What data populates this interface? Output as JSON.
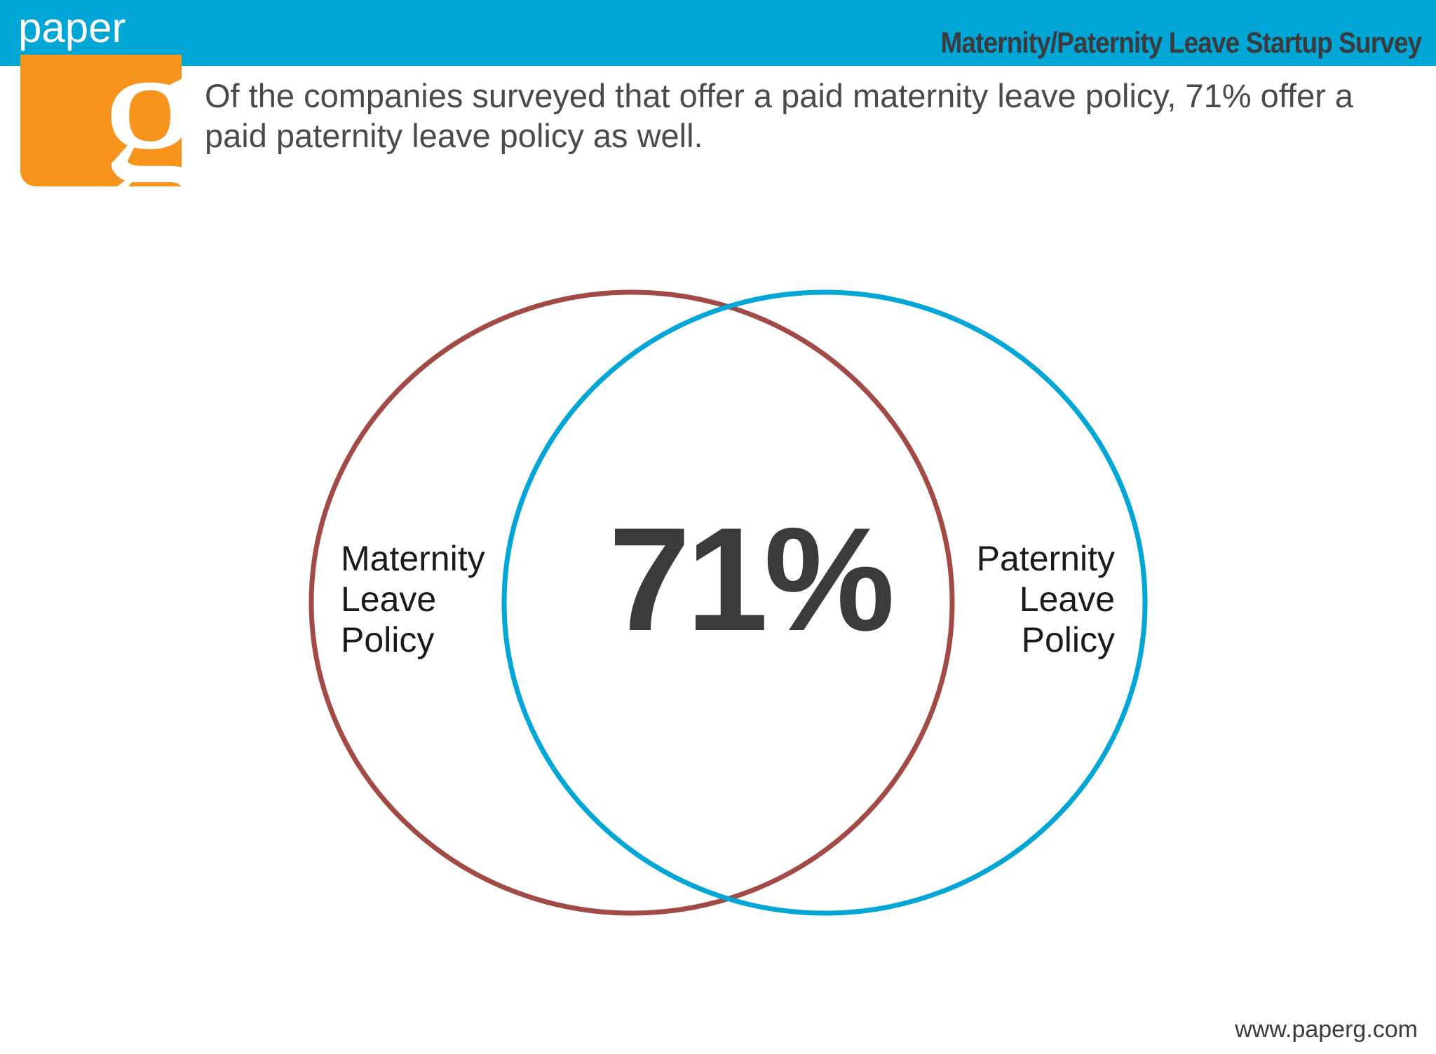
{
  "header": {
    "brand_word": "paper",
    "survey_title": "Maternity/Paternity Leave Startup Survey"
  },
  "logo": {
    "letter": "g",
    "color": "#f7941d"
  },
  "headline": "Of the companies surveyed that offer a paid maternity leave policy, 71% offer a paid paternity leave policy as well.",
  "venn": {
    "overlap_value": "71%",
    "sets": [
      {
        "lines": [
          "Maternity",
          "Leave",
          "Policy"
        ],
        "color": "#a24a45"
      },
      {
        "lines": [
          "Paternity",
          "Leave",
          "Policy"
        ],
        "color": "#00a6d6"
      }
    ]
  },
  "footer": {
    "url": "www.paperg.com"
  },
  "colors": {
    "header_bar": "#00a6d6",
    "text_dark": "#3b3b3d"
  }
}
